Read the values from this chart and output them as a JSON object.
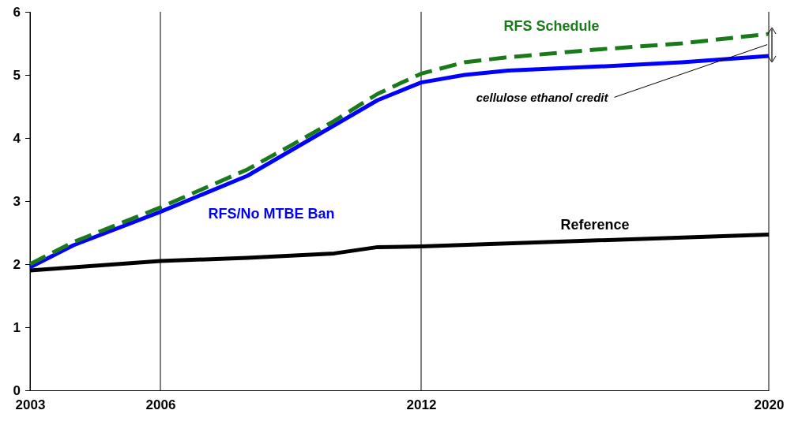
{
  "chart_data": {
    "type": "line",
    "x": [
      2003,
      2004,
      2006,
      2008,
      2009,
      2010,
      2011,
      2012,
      2013,
      2014,
      2016,
      2018,
      2020
    ],
    "series": [
      {
        "name": "Reference",
        "color": "#000000",
        "line_style": "solid",
        "x": [
          2003,
          2006,
          2008,
          2010,
          2011,
          2012,
          2020
        ],
        "values": [
          1.9,
          2.05,
          2.1,
          2.17,
          2.27,
          2.28,
          2.47
        ]
      },
      {
        "name": "RFS/No MTBE Ban",
        "color": "#0000ff",
        "line_style": "solid",
        "values": [
          1.95,
          2.3,
          2.83,
          3.4,
          3.8,
          4.2,
          4.6,
          4.88,
          5.0,
          5.07,
          5.13,
          5.2,
          5.3
        ]
      },
      {
        "name": "RFS Schedule",
        "color": "#1a7a1a",
        "line_style": "dashed",
        "values": [
          2.0,
          2.35,
          2.9,
          3.5,
          3.88,
          4.27,
          4.7,
          5.02,
          5.2,
          5.28,
          5.4,
          5.5,
          5.65
        ]
      }
    ],
    "xlim": [
      2003,
      2020
    ],
    "xticks": [
      2003,
      2006,
      2012,
      2020
    ],
    "ylim": [
      0,
      6
    ],
    "yticks": [
      0,
      1,
      2,
      3,
      4,
      5,
      6
    ],
    "grid": "x",
    "legend": false,
    "marker": "none",
    "annotations": [
      "cellulose ethanol credit"
    ]
  }
}
